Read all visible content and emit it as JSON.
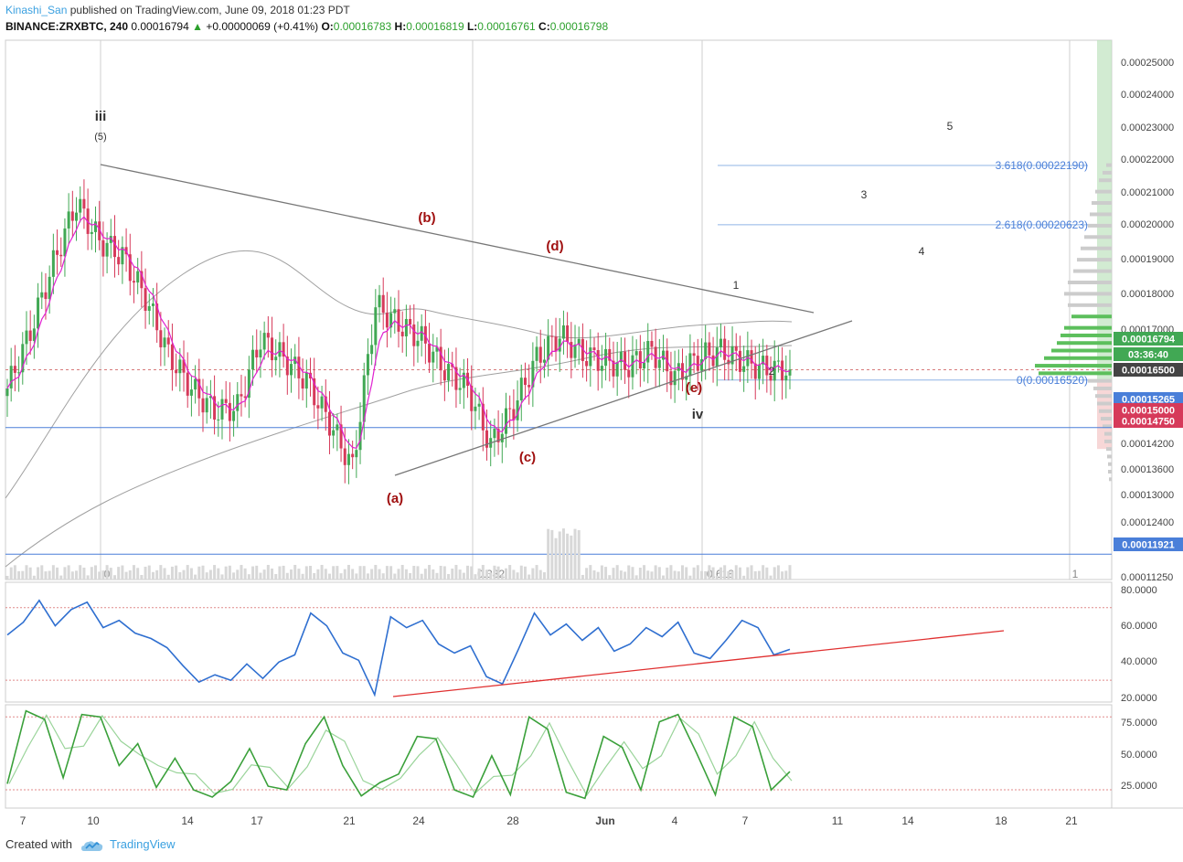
{
  "header": {
    "author": "Kinashi_San",
    "published": "published on TradingView.com, June 09, 2018 01:23 PDT",
    "symbol": "BINANCE:ZRXBTC, 240",
    "last": "0.00016794",
    "change_symbol": "▲",
    "change": "+0.00000069 (+0.41%)",
    "o_label": "O:",
    "o": "0.00016783",
    "h_label": "H:",
    "h": "0.00016819",
    "l_label": "L:",
    "l": "0.00016761",
    "c_label": "C:",
    "c": "0.00016798"
  },
  "footer": {
    "created": "Created with",
    "brand": "TradingView",
    "logo_icon": "tradingview-cloud-icon"
  },
  "colors": {
    "up": "#41a854",
    "down": "#d63a5a",
    "ema": "#e020d0",
    "ma": "#a0a0a0",
    "hline": "#4a7fd9",
    "rsi": "#2f6fd0",
    "stoch_k": "#3aa03a",
    "stoch_d": "#9ad49a",
    "trend_red": "#e03030",
    "wave_red": "#a01010"
  },
  "chart_data": [
    {
      "type": "candlestick",
      "pair": "BINANCE:ZRXBTC",
      "interval": "240",
      "x_ticks": [
        "7",
        "10",
        "14",
        "17",
        "21",
        "24",
        "28",
        "Jun",
        "4",
        "7",
        "11",
        "14",
        "18",
        "21"
      ],
      "y_ticks": [
        "0.00025000",
        "0.00024000",
        "0.00023000",
        "0.00022000",
        "0.00021000",
        "0.00020000",
        "0.00019000",
        "0.00018000",
        "0.00017000",
        "0.00016500",
        "0.00015000",
        "0.00014200",
        "0.00013600",
        "0.00013000",
        "0.00012400",
        "0.00011250"
      ],
      "ylim": [
        0.0001125,
        0.000255
      ],
      "price_labels": [
        {
          "value": "0.00016794",
          "color": "#41a854"
        },
        {
          "value": "03:36:40",
          "color": "#41a854"
        },
        {
          "value": "0.00016500",
          "color": "#444444"
        },
        {
          "value": "0.00015265",
          "color": "#4a7fd9"
        },
        {
          "value": "0.00015000",
          "color": "#d63a5a"
        },
        {
          "value": "0.00014750",
          "color": "#d63a5a"
        },
        {
          "value": "0.00011921",
          "color": "#4a7fd9"
        }
      ],
      "horizontal_lines": [
        0.00015265,
        0.00011921
      ],
      "fib_extension": [
        {
          "label": "3.618(0.00022190)",
          "value": 0.0002219
        },
        {
          "label": "2.618(0.00020623)",
          "value": 0.00020623
        },
        {
          "label": "0(0.00016520)",
          "value": 0.0001652
        }
      ],
      "fib_time_labels": [
        "0",
        "0.382",
        "0.618",
        "1"
      ],
      "wave_labels": [
        "iii",
        "(5)",
        "(a)",
        "(b)",
        "(c)",
        "(d)",
        "(e)",
        "iv",
        "1",
        "2",
        "3",
        "4",
        "5"
      ],
      "candles_close_approx": [
        0.000163,
        0.000178,
        0.000196,
        0.000212,
        0.000202,
        0.000198,
        0.000187,
        0.000172,
        0.000163,
        0.000157,
        0.000158,
        0.000176,
        0.000171,
        0.000165,
        0.000154,
        0.000142,
        0.000185,
        0.00018,
        0.000176,
        0.000168,
        0.000163,
        0.000148,
        0.000158,
        0.000171,
        0.000177,
        0.000172,
        0.00017,
        0.000169,
        0.000173,
        0.000166,
        0.000171,
        0.000173,
        0.00017,
        0.000168,
        0.000168
      ]
    },
    {
      "type": "line",
      "indicator": "RSI",
      "y_ticks": [
        "80.0000",
        "60.0000",
        "40.0000",
        "20.0000"
      ],
      "ylim": [
        18,
        84
      ],
      "bands": [
        70,
        30
      ],
      "values_approx": [
        55,
        62,
        74,
        60,
        69,
        73,
        59,
        63,
        56,
        53,
        48,
        38,
        29,
        33,
        30,
        39,
        31,
        40,
        44,
        67,
        60,
        45,
        41,
        22,
        65,
        59,
        63,
        50,
        45,
        49,
        32,
        28,
        47,
        67,
        55,
        61,
        52,
        59,
        46,
        50,
        59,
        54,
        62,
        45,
        42,
        52,
        63,
        59,
        44,
        47
      ]
    },
    {
      "type": "line",
      "indicator": "Stochastic",
      "y_ticks": [
        "75.0000",
        "50.0000",
        "25.0000"
      ],
      "ylim": [
        5,
        90
      ],
      "bands": [
        80,
        20
      ],
      "values_approx": [
        25,
        85,
        78,
        30,
        82,
        80,
        40,
        58,
        22,
        46,
        20,
        14,
        27,
        54,
        23,
        20,
        58,
        80,
        40,
        15,
        26,
        33,
        64,
        62,
        20,
        14,
        48,
        16,
        80,
        70,
        18,
        13,
        64,
        55,
        20,
        76,
        82,
        50,
        16,
        80,
        72,
        20,
        35
      ]
    }
  ]
}
